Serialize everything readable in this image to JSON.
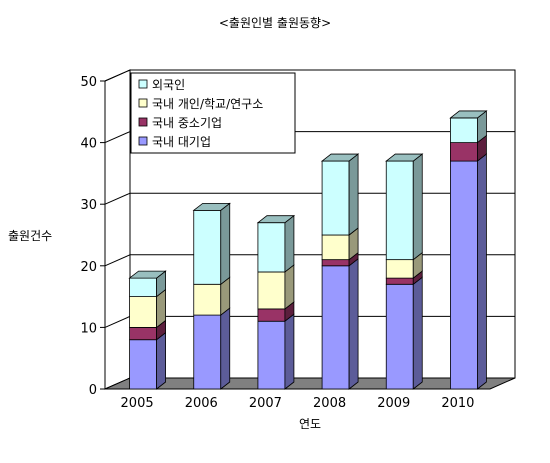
{
  "chart_data": {
    "type": "bar",
    "stacked": true,
    "three_d": true,
    "title": "<출원인별 출원동향>",
    "xlabel": "연도",
    "ylabel": "출원건수",
    "categories": [
      "2005",
      "2006",
      "2007",
      "2008",
      "2009",
      "2010"
    ],
    "ylim": [
      0,
      50
    ],
    "yticks": [
      "0",
      "10",
      "20",
      "30",
      "40",
      "50"
    ],
    "grid": true,
    "legend_position": "top-left",
    "series": [
      {
        "name": "국내 대기업",
        "color": "#9999ff",
        "values": [
          8,
          12,
          11,
          20,
          17,
          37
        ]
      },
      {
        "name": "국내 중소기업",
        "color": "#993366",
        "values": [
          2,
          0,
          2,
          1,
          1,
          3
        ]
      },
      {
        "name": "국내 개인/학교/연구소",
        "color": "#ffffcc",
        "values": [
          5,
          5,
          6,
          4,
          3,
          0
        ]
      },
      {
        "name": "외국인",
        "color": "#ccffff",
        "values": [
          3,
          12,
          8,
          12,
          16,
          4
        ]
      }
    ],
    "legend_order": [
      "외국인",
      "국내 개인/학교/연구소",
      "국내 중소기업",
      "국내 대기업"
    ]
  }
}
